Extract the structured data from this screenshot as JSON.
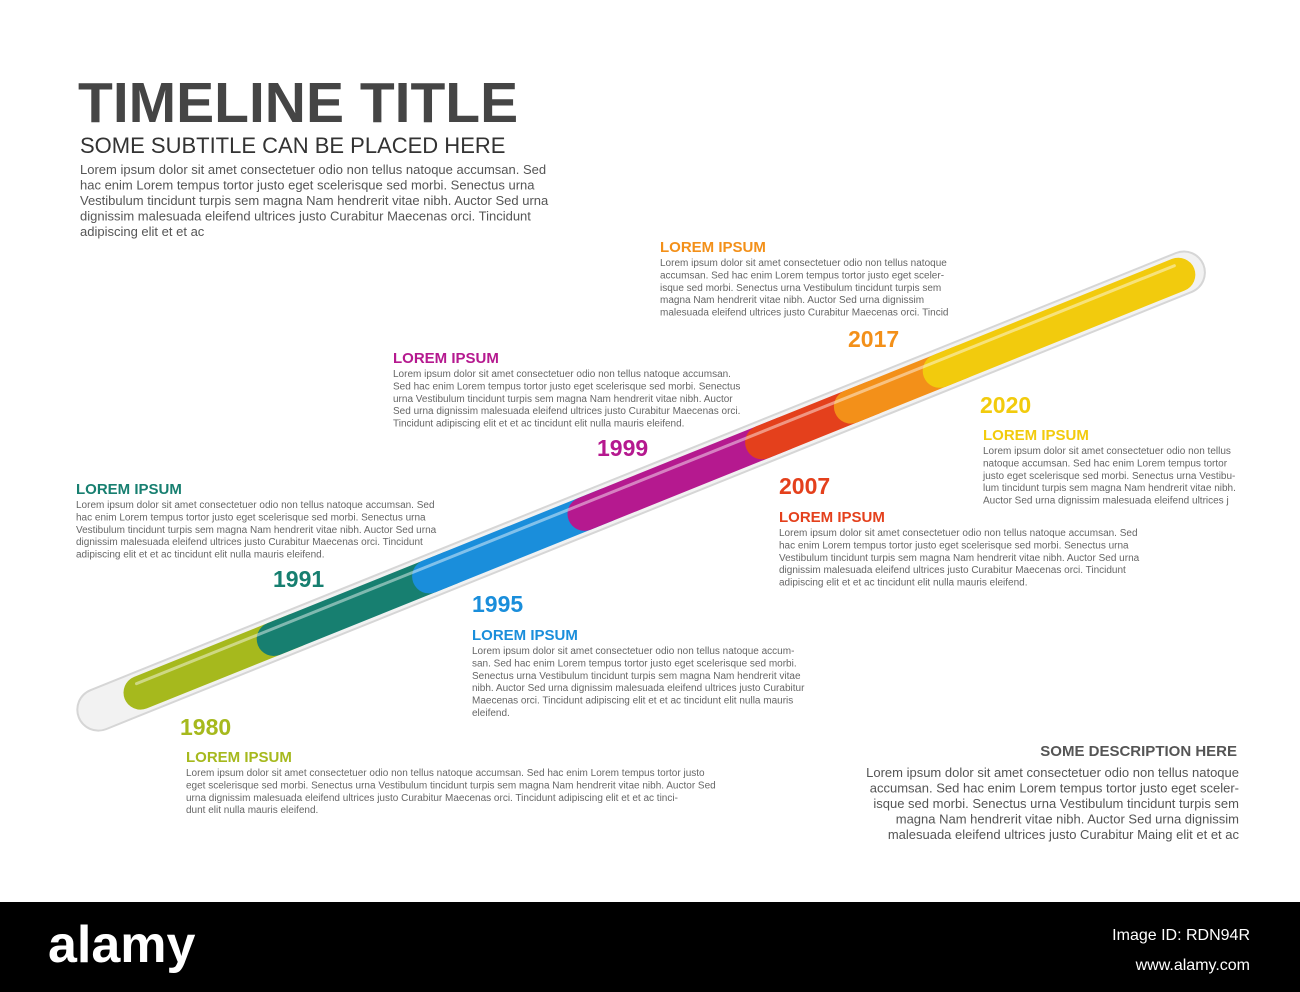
{
  "header": {
    "title": "TIMELINE TITLE",
    "subtitle": "SOME SUBTITLE CAN BE PLACED HERE",
    "text": [
      "Lorem ipsum dolor sit amet consectetuer odio non tellus natoque accumsan. Sed",
      "hac enim Lorem tempus tortor justo eget scelerisque sed morbi. Senectus urna",
      "Vestibulum tincidunt turpis sem magna Nam hendrerit vitae nibh. Auctor Sed urna",
      "dignissim malesuada eleifend ultrices justo Curabitur Maecenas orci. Tincidunt",
      "adipiscing elit et et ac"
    ]
  },
  "events": [
    {
      "year": "1980",
      "heading": "LOREM IPSUM",
      "color": "#a6b91d",
      "text": [
        "Lorem ipsum dolor sit amet consectetuer odio non tellus natoque accumsan. Sed hac enim Lorem tempus tortor justo",
        "eget scelerisque sed morbi. Senectus urna Vestibulum tincidunt turpis sem magna Nam hendrerit vitae nibh. Auctor Sed",
        "urna dignissim malesuada eleifend ultrices justo Curabitur Maecenas orci. Tincidunt adipiscing elit et et ac tinci-",
        "dunt elit nulla mauris eleifend."
      ]
    },
    {
      "year": "1991",
      "heading": "LOREM IPSUM",
      "color": "#177f70",
      "text": [
        "Lorem ipsum dolor sit amet consectetuer odio non tellus natoque accumsan. Sed",
        "hac enim Lorem tempus tortor justo eget scelerisque sed morbi. Senectus urna",
        "Vestibulum tincidunt turpis sem magna Nam hendrerit vitae nibh. Auctor Sed urna",
        "dignissim malesuada eleifend ultrices justo Curabitur Maecenas orci. Tincidunt",
        "adipiscing elit et et ac tincidunt elit nulla mauris eleifend."
      ]
    },
    {
      "year": "1995",
      "heading": "LOREM IPSUM",
      "color": "#1a8edb",
      "text": [
        "Lorem ipsum dolor sit amet consectetuer odio non tellus natoque accum-",
        "san. Sed hac enim Lorem tempus tortor justo eget scelerisque sed morbi.",
        "Senectus urna Vestibulum tincidunt turpis sem magna Nam hendrerit vitae",
        "nibh. Auctor Sed urna dignissim malesuada eleifend ultrices justo Curabitur",
        "Maecenas orci. Tincidunt adipiscing elit et et ac tincidunt elit nulla mauris",
        "eleifend."
      ]
    },
    {
      "year": "1999",
      "heading": "LOREM IPSUM",
      "color": "#b5198f",
      "text": [
        "Lorem ipsum dolor sit amet consectetuer odio non tellus natoque accumsan.",
        "Sed hac enim Lorem tempus tortor justo eget scelerisque sed morbi. Senectus",
        "urna Vestibulum tincidunt turpis sem magna Nam hendrerit vitae nibh. Auctor",
        "Sed urna dignissim malesuada eleifend ultrices justo Curabitur Maecenas orci.",
        "Tincidunt adipiscing elit et et ac tincidunt elit nulla mauris eleifend."
      ]
    },
    {
      "year": "2007",
      "heading": "LOREM IPSUM",
      "color": "#e4401c",
      "text": [
        "Lorem ipsum dolor sit amet consectetuer odio non tellus natoque accumsan. Sed",
        "hac enim Lorem tempus tortor justo eget scelerisque sed morbi. Senectus urna",
        "Vestibulum tincidunt turpis sem magna Nam hendrerit vitae nibh. Auctor Sed urna",
        "dignissim malesuada eleifend ultrices justo Curabitur Maecenas orci. Tincidunt",
        "adipiscing elit et et ac tincidunt elit nulla mauris eleifend."
      ]
    },
    {
      "year": "2017",
      "heading": "LOREM IPSUM",
      "color": "#f39019",
      "text": [
        "Lorem ipsum dolor sit amet consectetuer odio non tellus natoque",
        "accumsan. Sed hac enim Lorem tempus tortor justo eget sceler-",
        "isque sed morbi. Senectus urna Vestibulum tincidunt turpis sem",
        "magna Nam hendrerit vitae nibh. Auctor Sed urna dignissim",
        "malesuada eleifend ultrices justo Curabitur Maecenas orci. Tincid"
      ]
    },
    {
      "year": "2020",
      "heading": "LOREM IPSUM",
      "color": "#f2cb0d",
      "text": [
        "Lorem ipsum dolor sit amet consectetuer odio non tellus",
        "natoque accumsan. Sed hac enim Lorem tempus tortor",
        "justo eget scelerisque sed morbi. Senectus urna Vestibu-",
        "lum tincidunt turpis sem magna Nam hendrerit vitae nibh.",
        "Auctor Sed urna dignissim malesuada eleifend ultrices j"
      ]
    }
  ],
  "description": {
    "heading": "SOME DESCRIPTION HERE",
    "text": [
      "Lorem ipsum dolor sit amet consectetuer odio non tellus natoque",
      "accumsan. Sed hac enim Lorem tempus tortor justo eget sceler-",
      "isque sed morbi. Senectus urna Vestibulum tincidunt turpis sem",
      "magna Nam hendrerit vitae nibh. Auctor Sed urna dignissim",
      "malesuada eleifend ultrices justo Curabitur Maing elit et et ac"
    ]
  },
  "footer": {
    "logo": "alamy",
    "image_id": "Image ID: RDN94R",
    "url": "www.alamy.com"
  }
}
